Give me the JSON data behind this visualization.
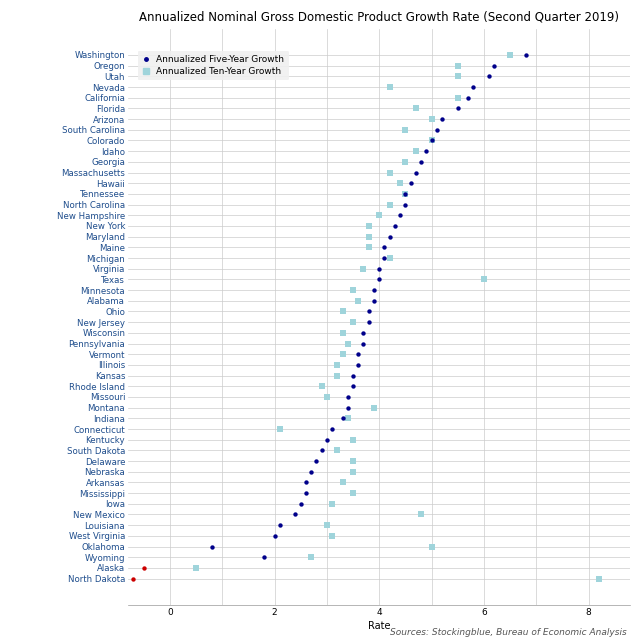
{
  "title": "Annualized Nominal Gross Domestic Product Growth Rate (Second Quarter 2019)",
  "xlabel": "Rate",
  "source": "Sources: Stockingblue, Bureau of Economic Analysis",
  "states": [
    "Washington",
    "Oregon",
    "Utah",
    "Nevada",
    "California",
    "Florida",
    "Arizona",
    "South Carolina",
    "Colorado",
    "Idaho",
    "Georgia",
    "Massachusetts",
    "Hawaii",
    "Tennessee",
    "North Carolina",
    "New Hampshire",
    "New York",
    "Maryland",
    "Maine",
    "Michigan",
    "Virginia",
    "Texas",
    "Minnesota",
    "Alabama",
    "Ohio",
    "New Jersey",
    "Wisconsin",
    "Pennsylvania",
    "Vermont",
    "Illinois",
    "Kansas",
    "Rhode Island",
    "Missouri",
    "Montana",
    "Indiana",
    "Connecticut",
    "Kentucky",
    "South Dakota",
    "Delaware",
    "Nebraska",
    "Arkansas",
    "Mississippi",
    "Iowa",
    "New Mexico",
    "Louisiana",
    "West Virginia",
    "Oklahoma",
    "Wyoming",
    "Alaska",
    "North Dakota"
  ],
  "five_year": [
    6.8,
    6.2,
    6.1,
    5.8,
    5.7,
    5.5,
    5.2,
    5.1,
    5.0,
    4.9,
    4.8,
    4.7,
    4.6,
    4.5,
    4.5,
    4.4,
    4.3,
    4.2,
    4.1,
    4.1,
    4.0,
    4.0,
    3.9,
    3.9,
    3.8,
    3.8,
    3.7,
    3.7,
    3.6,
    3.6,
    3.5,
    3.5,
    3.4,
    3.4,
    3.3,
    3.1,
    3.0,
    2.9,
    2.8,
    2.7,
    2.6,
    2.6,
    2.5,
    2.4,
    2.1,
    2.0,
    0.8,
    1.8,
    -0.5,
    -0.7
  ],
  "ten_year": [
    6.5,
    5.5,
    5.5,
    4.2,
    5.5,
    4.7,
    5.0,
    4.5,
    5.0,
    4.7,
    4.5,
    4.2,
    4.4,
    4.5,
    4.2,
    4.0,
    3.8,
    3.8,
    3.8,
    4.2,
    3.7,
    6.0,
    3.5,
    3.6,
    3.3,
    3.5,
    3.3,
    3.4,
    3.3,
    3.2,
    3.2,
    2.9,
    3.0,
    3.9,
    3.4,
    2.1,
    3.5,
    3.2,
    3.5,
    3.5,
    3.3,
    3.5,
    3.1,
    4.8,
    3.0,
    3.1,
    5.0,
    2.7,
    0.5,
    8.2
  ],
  "five_year_color": "#00008B",
  "ten_year_color": "#9fd4db",
  "five_year_red_states": [
    "Alaska",
    "North Dakota"
  ],
  "red_color": "#cc0000",
  "title_fontsize": 8.5,
  "label_fontsize": 6.5,
  "ytick_fontsize": 6.2,
  "source_fontsize": 6.5,
  "background_color": "#ffffff",
  "grid_color": "#cccccc",
  "xlim_left": -0.8,
  "xlim_right": 8.8,
  "xticks": [
    0,
    2,
    4,
    6,
    8
  ]
}
